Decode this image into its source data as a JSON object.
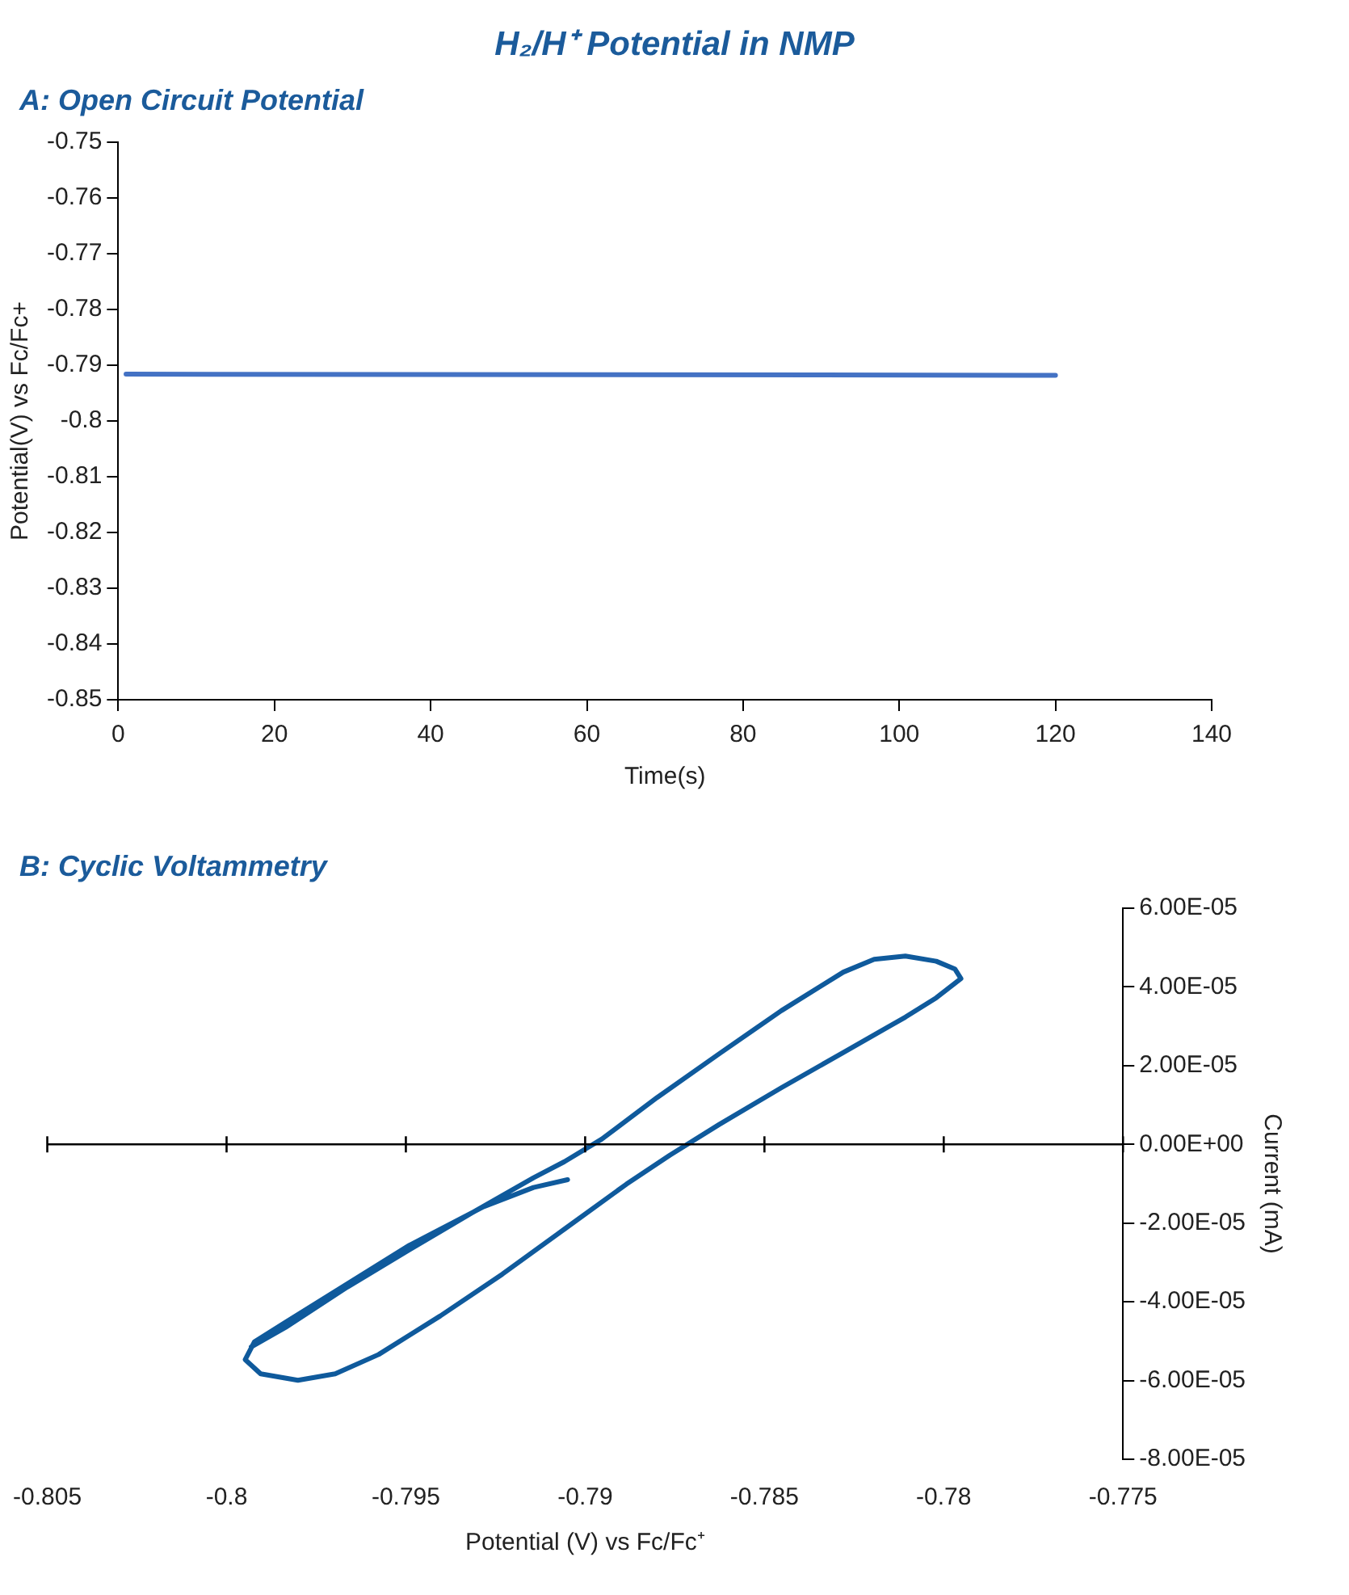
{
  "chart_data": [
    {
      "type": "line",
      "title": "H₂/H⁺ Potential in NMP",
      "subtitle": "A: Open Circuit Potential",
      "xlabel": "Time(s)",
      "ylabel": "Potential(V) vs Fc/Fc+",
      "x": [
        1,
        120
      ],
      "series": [
        {
          "color": "#4472c4",
          "values": [
            -0.7916,
            -0.7918
          ]
        }
      ],
      "xlim": [
        0,
        140
      ],
      "xticks": [
        0,
        20,
        40,
        60,
        80,
        100,
        120,
        140
      ],
      "ylim": [
        -0.85,
        -0.75
      ],
      "yticks": [
        -0.85,
        -0.84,
        -0.83,
        -0.82,
        -0.81,
        -0.8,
        -0.79,
        -0.78,
        -0.77,
        -0.76,
        -0.75
      ],
      "marker": "none"
    },
    {
      "type": "line",
      "title": "B: Cyclic Voltammetry",
      "xlabel": "Potential (V) vs Fc/Fc⁺",
      "y2label": "Current (mA)",
      "x": [
        -0.79049,
        -0.79144,
        -0.79283,
        -0.7949,
        -0.79663,
        -0.79836,
        -0.79922,
        -0.79948,
        -0.79905,
        -0.79801,
        -0.79697,
        -0.79576,
        -0.79404,
        -0.79231,
        -0.79058,
        -0.78885,
        -0.78764,
        -0.78626,
        -0.78453,
        -0.7828,
        -0.78107,
        -0.78021,
        -0.77952,
        -0.77969,
        -0.78021,
        -0.78107,
        -0.78194,
        -0.7828,
        -0.78453,
        -0.78626,
        -0.78799,
        -0.78954,
        -0.79058,
        -0.79144,
        -0.79317,
        -0.7949,
        -0.79663,
        -0.79836,
        -0.79931
      ],
      "series": [
        {
          "color": "#0f5a9c",
          "axis": "y2",
          "values": [
            -8.98e-06,
            -1.094e-05,
            -1.584e-05,
            -2.563e-05,
            -3.543e-05,
            -4.522e-05,
            -5.012e-05,
            -5.469e-05,
            -5.829e-05,
            -5.992e-05,
            -5.829e-05,
            -5.339e-05,
            -4.359e-05,
            -3.298e-05,
            -2.155e-05,
            -1.012e-05,
            -2.78e-06,
            5.06e-06,
            1.437e-05,
            2.335e-05,
            3.233e-05,
            3.722e-05,
            4.212e-05,
            4.457e-05,
            4.653e-05,
            4.784e-05,
            4.702e-05,
            4.376e-05,
            3.396e-05,
            2.302e-05,
            1.192e-05,
            1.31e-06,
            -4.41e-06,
            -8.49e-06,
            -1.747e-05,
            -2.678e-05,
            -3.624e-05,
            -4.653e-05,
            -5.143e-05
          ]
        }
      ],
      "xlim": [
        -0.805,
        -0.775
      ],
      "xticks": [
        -0.805,
        -0.8,
        -0.795,
        -0.79,
        -0.785,
        -0.78,
        -0.775
      ],
      "y2lim": [
        -8e-05,
        6e-05
      ],
      "y2ticks": [
        {
          "value": -8e-05,
          "label": "-8.00E-05"
        },
        {
          "value": -6e-05,
          "label": "-6.00E-05"
        },
        {
          "value": -4e-05,
          "label": "-4.00E-05"
        },
        {
          "value": -2e-05,
          "label": "-2.00E-05"
        },
        {
          "value": 0,
          "label": "0.00E+00"
        },
        {
          "value": 2e-05,
          "label": "2.00E-05"
        },
        {
          "value": 4e-05,
          "label": "4.00E-05"
        },
        {
          "value": 6e-05,
          "label": "6.00E-05"
        }
      ],
      "marker": "none"
    }
  ]
}
